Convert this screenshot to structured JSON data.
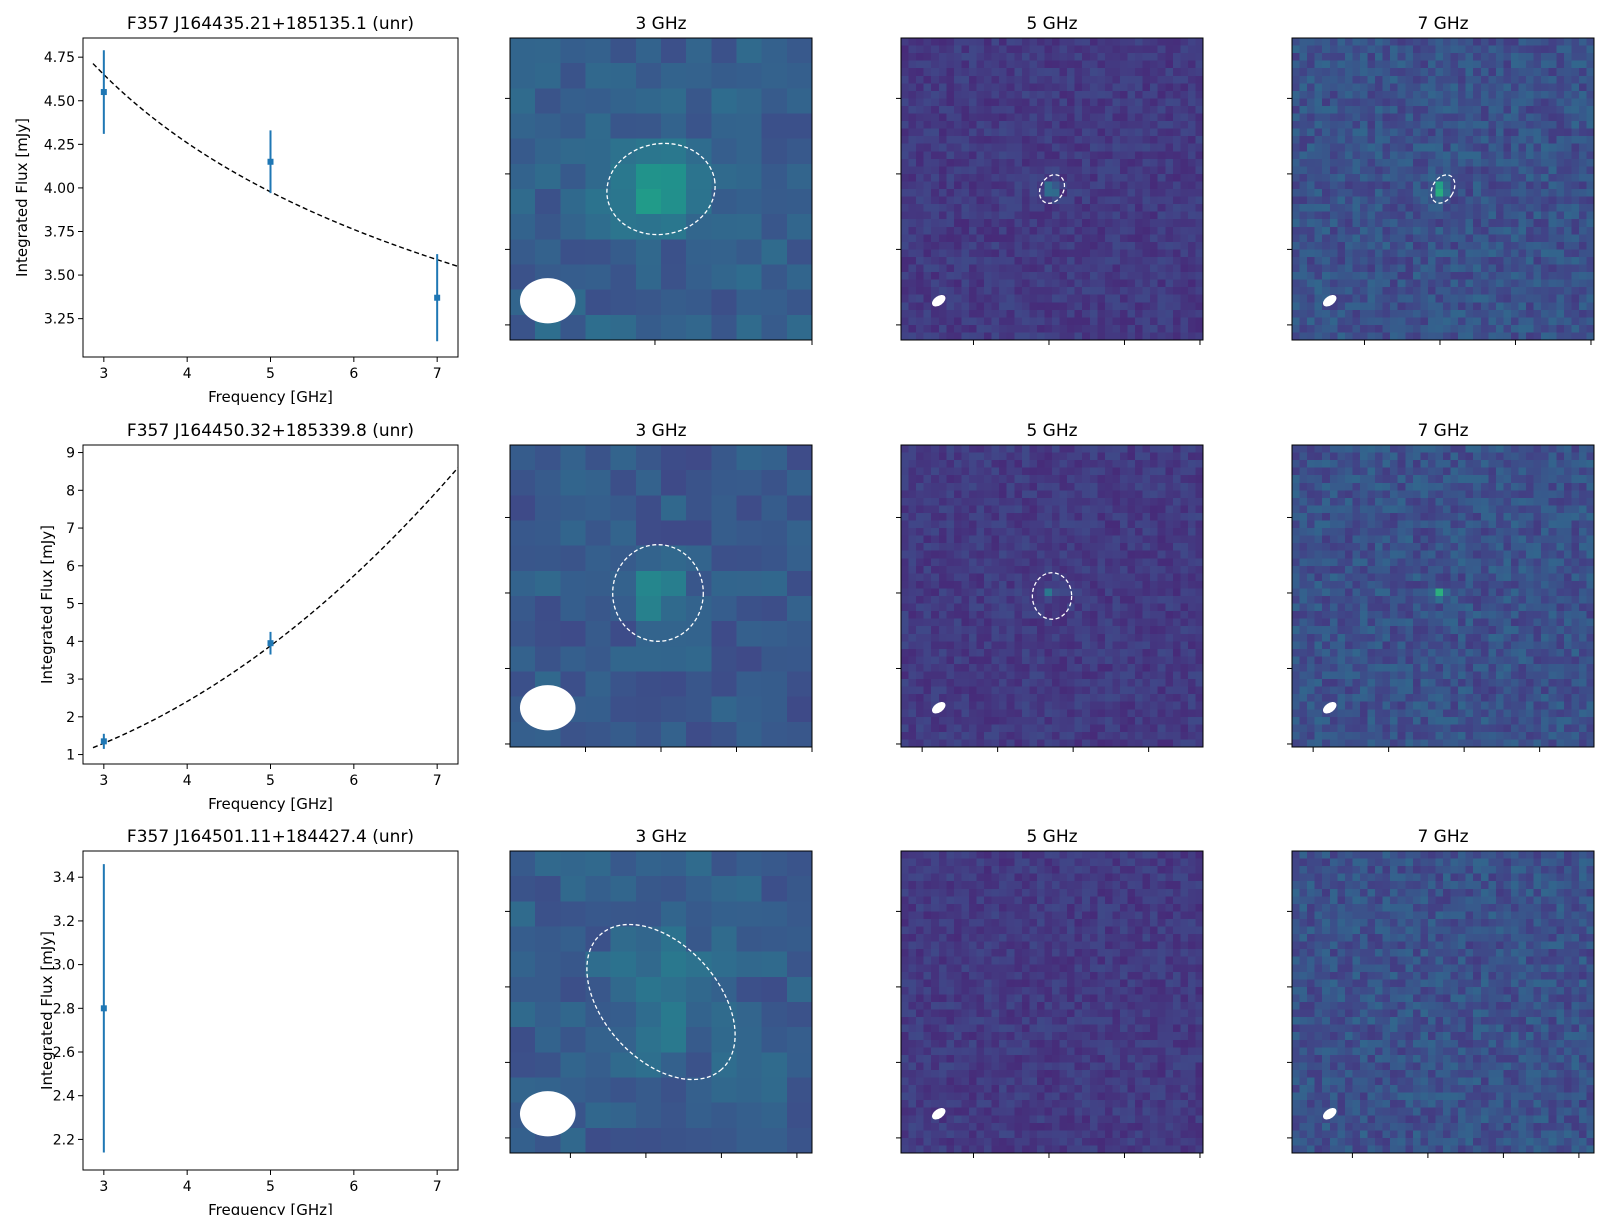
{
  "figure": {
    "background": "#ffffff"
  },
  "colors": {
    "errorbar": "#1f77b4",
    "fit": "#000000",
    "contour": "#ffffff",
    "beam": "#ffffff"
  },
  "chart_data": [
    {
      "type": "scatter",
      "title": "F357 J164435.21+185135.1 (unr)",
      "xlabel": "Frequency [GHz]",
      "ylabel": "Integrated Flux [mJy]",
      "xlim": [
        2.75,
        7.25
      ],
      "ylim": [
        3.03,
        4.86
      ],
      "xticks": [
        3,
        4,
        5,
        6,
        7
      ],
      "yticks": [
        3.25,
        3.5,
        3.75,
        4.0,
        4.25,
        4.5,
        4.75
      ],
      "ytick_labels": [
        "3.25",
        "3.50",
        "3.75",
        "4.00",
        "4.25",
        "4.50",
        "4.75"
      ],
      "points": [
        {
          "x": 3,
          "y": 4.55,
          "yerr": 0.24
        },
        {
          "x": 5,
          "y": 4.15,
          "yerr": 0.18
        },
        {
          "x": 7,
          "y": 3.37,
          "yerr": 0.25
        }
      ],
      "fit": {
        "model": "power_law",
        "x0": 3,
        "y0": 4.65,
        "x1": 7.25,
        "y1": 3.55,
        "xstart": 2.87
      },
      "panels": [
        {
          "title": "3 GHz",
          "base": 0.3,
          "n": 12,
          "noise": 0.06,
          "src": {
            "cx": 0.49,
            "cy": 0.5,
            "sx": 0.09,
            "sy": 0.08,
            "amp": 0.3
          },
          "ellipse": {
            "cx": 0.5,
            "cy": 0.5,
            "rx": 0.18,
            "ry": 0.15,
            "rot": -10
          },
          "beam": {
            "cx": 0.125,
            "cy": 0.87,
            "rx": 0.092,
            "ry": 0.075,
            "rot": 0
          },
          "xt": [
            0.48,
            1.0
          ],
          "yt": [
            0.2,
            0.45,
            0.7,
            0.95
          ]
        },
        {
          "title": "5 GHz",
          "base": 0.17,
          "n": 40,
          "noise": 0.05,
          "src": {
            "cx": 0.5,
            "cy": 0.5,
            "sx": 0.012,
            "sy": 0.012,
            "amp": 0.45
          },
          "ellipse": {
            "cx": 0.5,
            "cy": 0.5,
            "rx": 0.038,
            "ry": 0.05,
            "rot": 30
          },
          "beam": {
            "cx": 0.125,
            "cy": 0.87,
            "rx": 0.025,
            "ry": 0.015,
            "rot": -35
          },
          "xt": [
            0.24,
            0.49,
            0.74,
            0.99
          ],
          "yt": [
            0.2,
            0.45,
            0.7,
            0.95
          ]
        },
        {
          "title": "7 GHz",
          "base": 0.25,
          "n": 40,
          "noise": 0.08,
          "src": {
            "cx": 0.49,
            "cy": 0.5,
            "sx": 0.012,
            "sy": 0.012,
            "amp": 0.65
          },
          "ellipse": {
            "cx": 0.5,
            "cy": 0.5,
            "rx": 0.035,
            "ry": 0.05,
            "rot": 30
          },
          "beam": {
            "cx": 0.125,
            "cy": 0.87,
            "rx": 0.025,
            "ry": 0.015,
            "rot": -35
          },
          "xt": [
            0.24,
            0.49,
            0.74,
            0.99
          ],
          "yt": [
            0.2,
            0.45,
            0.7,
            0.95
          ]
        }
      ]
    },
    {
      "type": "scatter",
      "title": "F357 J164450.32+185339.8 (unr)",
      "xlabel": "Frequency [GHz]",
      "ylabel": "Integrated Flux [mJy]",
      "xlim": [
        2.75,
        7.25
      ],
      "ylim": [
        0.75,
        9.2
      ],
      "xticks": [
        3,
        4,
        5,
        6,
        7
      ],
      "yticks": [
        1,
        2,
        3,
        4,
        5,
        6,
        7,
        8,
        9
      ],
      "ytick_labels": [
        "1",
        "2",
        "3",
        "4",
        "5",
        "6",
        "7",
        "8",
        "9"
      ],
      "points": [
        {
          "x": 3,
          "y": 1.35,
          "yerr": 0.2
        },
        {
          "x": 5,
          "y": 3.95,
          "yerr": 0.3
        }
      ],
      "fit": {
        "model": "power_law",
        "x0": 3,
        "y0": 1.3,
        "x1": 7.25,
        "y1": 8.6,
        "xstart": 2.87
      },
      "panels": [
        {
          "title": "3 GHz",
          "base": 0.28,
          "n": 12,
          "noise": 0.06,
          "src": {
            "cx": 0.49,
            "cy": 0.5,
            "sx": 0.06,
            "sy": 0.07,
            "amp": 0.17
          },
          "ellipse": {
            "cx": 0.49,
            "cy": 0.49,
            "rx": 0.15,
            "ry": 0.16,
            "rot": 0
          },
          "beam": {
            "cx": 0.125,
            "cy": 0.87,
            "rx": 0.092,
            "ry": 0.075,
            "rot": 0
          },
          "xt": [
            0.25,
            0.5,
            0.75,
            1.0
          ],
          "yt": [
            0.24,
            0.49,
            0.74,
            0.99
          ]
        },
        {
          "title": "5 GHz",
          "base": 0.17,
          "n": 40,
          "noise": 0.05,
          "src": {
            "cx": 0.49,
            "cy": 0.49,
            "sx": 0.012,
            "sy": 0.012,
            "amp": 0.25
          },
          "ellipse": {
            "cx": 0.5,
            "cy": 0.5,
            "rx": 0.065,
            "ry": 0.077,
            "rot": 0
          },
          "beam": {
            "cx": 0.125,
            "cy": 0.87,
            "rx": 0.025,
            "ry": 0.015,
            "rot": -35
          },
          "xt": [
            0.07,
            0.32,
            0.57,
            0.82
          ],
          "yt": [
            0.24,
            0.49,
            0.74,
            0.99
          ]
        },
        {
          "title": "7 GHz",
          "base": 0.25,
          "n": 40,
          "noise": 0.08,
          "src": {
            "cx": 0.49,
            "cy": 0.49,
            "sx": 0.012,
            "sy": 0.012,
            "amp": 0.35
          },
          "ellipse": null,
          "beam": {
            "cx": 0.125,
            "cy": 0.87,
            "rx": 0.025,
            "ry": 0.015,
            "rot": -35
          },
          "xt": [
            0.07,
            0.32,
            0.57,
            0.82
          ],
          "yt": [
            0.24,
            0.49,
            0.74,
            0.99
          ]
        }
      ]
    },
    {
      "type": "scatter",
      "title": "F357 J164501.11+184427.4 (unr)",
      "xlabel": "Frequency [GHz]",
      "ylabel": "Integrated Flux [mJy]",
      "xlim": [
        2.75,
        7.25
      ],
      "ylim": [
        2.06,
        3.52
      ],
      "xticks": [
        3,
        4,
        5,
        6,
        7
      ],
      "yticks": [
        2.2,
        2.4,
        2.6,
        2.8,
        3.0,
        3.2,
        3.4
      ],
      "ytick_labels": [
        "2.2",
        "2.4",
        "2.6",
        "2.8",
        "3.0",
        "3.2",
        "3.4"
      ],
      "points": [
        {
          "x": 3,
          "y": 2.8,
          "yerr": 0.66
        }
      ],
      "fit": null,
      "panels": [
        {
          "title": "3 GHz",
          "base": 0.29,
          "n": 12,
          "noise": 0.06,
          "src": {
            "cx": 0.5,
            "cy": 0.48,
            "sx": 0.12,
            "sy": 0.13,
            "amp": 0.11
          },
          "ellipse": {
            "cx": 0.5,
            "cy": 0.5,
            "rx": 0.3,
            "ry": 0.19,
            "rot": 48
          },
          "beam": {
            "cx": 0.125,
            "cy": 0.87,
            "rx": 0.092,
            "ry": 0.075,
            "rot": 0
          },
          "xt": [
            0.2,
            0.45,
            0.7,
            0.95
          ],
          "yt": [
            0.2,
            0.45,
            0.7,
            0.95
          ]
        },
        {
          "title": "5 GHz",
          "base": 0.17,
          "n": 40,
          "noise": 0.05,
          "src": null,
          "ellipse": null,
          "beam": {
            "cx": 0.125,
            "cy": 0.87,
            "rx": 0.025,
            "ry": 0.015,
            "rot": -35
          },
          "xt": [
            0.24,
            0.49,
            0.74,
            0.99
          ],
          "yt": [
            0.2,
            0.45,
            0.7,
            0.95
          ]
        },
        {
          "title": "7 GHz",
          "base": 0.25,
          "n": 40,
          "noise": 0.08,
          "src": null,
          "ellipse": null,
          "beam": {
            "cx": 0.125,
            "cy": 0.87,
            "rx": 0.025,
            "ry": 0.015,
            "rot": -35
          },
          "xt": [
            0.2,
            0.45,
            0.7,
            0.95
          ],
          "yt": [
            0.2,
            0.45,
            0.7,
            0.95
          ]
        }
      ]
    }
  ]
}
